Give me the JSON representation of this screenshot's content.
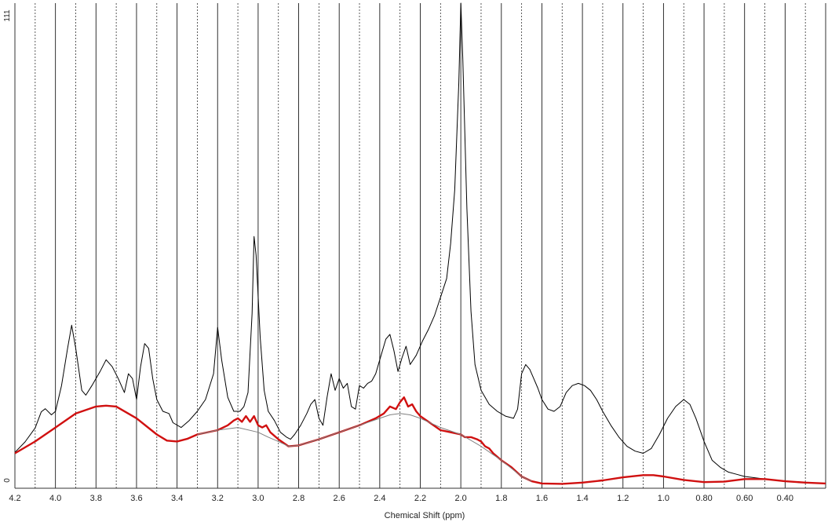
{
  "chart_data": {
    "type": "line",
    "title": "",
    "xlabel": "Chemical Shift (ppm)",
    "ylabel": "",
    "x_reversed": true,
    "xlim": [
      4.2,
      0.2
    ],
    "ylim": [
      0,
      111
    ],
    "y_tick_labels": [
      "111",
      "0"
    ],
    "y_ticks": [
      111,
      0
    ],
    "x_ticks": [
      4.2,
      4.0,
      3.8,
      3.6,
      3.4,
      3.2,
      3.0,
      2.8,
      2.6,
      2.4,
      2.2,
      2.0,
      1.8,
      1.6,
      1.4,
      1.2,
      1.0,
      0.8,
      0.6,
      0.4
    ],
    "x_tick_labels": [
      "4.2",
      "4.0",
      "3.8",
      "3.6",
      "3.4",
      "3.2",
      "3.0",
      "2.8",
      "2.6",
      "2.4",
      "2.2",
      "2.0",
      "1.8",
      "1.6",
      "1.4",
      "1.2",
      "1.0",
      "0.80",
      "0.60",
      "0.40"
    ],
    "grid": {
      "solid_lines": [
        4.0,
        3.8,
        3.6,
        3.4,
        3.2,
        3.0,
        2.8,
        2.6,
        2.4,
        2.2,
        2.0,
        1.8,
        1.6,
        1.4,
        1.2,
        1.0,
        0.8,
        0.6,
        0.4,
        0.2
      ],
      "dashed_lines": [
        4.1,
        3.9,
        3.7,
        3.5,
        3.3,
        3.1,
        2.9,
        2.7,
        2.5,
        2.3,
        2.1,
        1.9,
        1.7,
        1.5,
        1.3,
        1.1,
        0.9,
        0.7,
        0.5,
        0.3
      ]
    },
    "series": [
      {
        "color": "#000000",
        "points": [
          [
            4.2,
            8.2
          ],
          [
            4.15,
            10.6
          ],
          [
            4.1,
            13.8
          ],
          [
            4.07,
            17.5
          ],
          [
            4.05,
            18.2
          ],
          [
            4.02,
            16.8
          ],
          [
            4.0,
            17.6
          ],
          [
            3.97,
            23.5
          ],
          [
            3.94,
            32.0
          ],
          [
            3.92,
            37.3
          ],
          [
            3.9,
            32.0
          ],
          [
            3.87,
            22.4
          ],
          [
            3.85,
            21.3
          ],
          [
            3.82,
            23.5
          ],
          [
            3.78,
            26.7
          ],
          [
            3.75,
            29.4
          ],
          [
            3.72,
            27.8
          ],
          [
            3.69,
            25.1
          ],
          [
            3.66,
            21.9
          ],
          [
            3.64,
            26.2
          ],
          [
            3.62,
            25.1
          ],
          [
            3.6,
            20.3
          ],
          [
            3.58,
            27.8
          ],
          [
            3.56,
            33.1
          ],
          [
            3.54,
            32.0
          ],
          [
            3.52,
            25.1
          ],
          [
            3.5,
            20.3
          ],
          [
            3.47,
            17.6
          ],
          [
            3.44,
            17.1
          ],
          [
            3.42,
            15.0
          ],
          [
            3.38,
            13.9
          ],
          [
            3.34,
            15.5
          ],
          [
            3.3,
            17.6
          ],
          [
            3.26,
            20.3
          ],
          [
            3.22,
            26.2
          ],
          [
            3.2,
            36.8
          ],
          [
            3.18,
            29.4
          ],
          [
            3.15,
            20.8
          ],
          [
            3.12,
            17.6
          ],
          [
            3.09,
            17.6
          ],
          [
            3.07,
            18.7
          ],
          [
            3.05,
            21.9
          ],
          [
            3.03,
            40.0
          ],
          [
            3.02,
            57.6
          ],
          [
            3.01,
            53.3
          ],
          [
            2.99,
            34.6
          ],
          [
            2.97,
            22.4
          ],
          [
            2.95,
            17.6
          ],
          [
            2.92,
            15.5
          ],
          [
            2.89,
            12.8
          ],
          [
            2.86,
            11.7
          ],
          [
            2.84,
            11.2
          ],
          [
            2.82,
            12.3
          ],
          [
            2.79,
            14.4
          ],
          [
            2.76,
            17.1
          ],
          [
            2.74,
            19.2
          ],
          [
            2.72,
            20.3
          ],
          [
            2.7,
            16.0
          ],
          [
            2.68,
            14.4
          ],
          [
            2.66,
            20.8
          ],
          [
            2.64,
            26.2
          ],
          [
            2.62,
            22.4
          ],
          [
            2.6,
            25.1
          ],
          [
            2.58,
            22.9
          ],
          [
            2.56,
            24.0
          ],
          [
            2.54,
            18.7
          ],
          [
            2.52,
            18.1
          ],
          [
            2.5,
            23.5
          ],
          [
            2.48,
            22.9
          ],
          [
            2.46,
            24.0
          ],
          [
            2.44,
            24.5
          ],
          [
            2.42,
            26.2
          ],
          [
            2.4,
            29.4
          ],
          [
            2.37,
            34.1
          ],
          [
            2.35,
            35.2
          ],
          [
            2.33,
            31.5
          ],
          [
            2.31,
            26.7
          ],
          [
            2.29,
            29.9
          ],
          [
            2.27,
            32.5
          ],
          [
            2.25,
            28.3
          ],
          [
            2.22,
            30.4
          ],
          [
            2.19,
            33.6
          ],
          [
            2.16,
            36.3
          ],
          [
            2.13,
            39.5
          ],
          [
            2.1,
            43.7
          ],
          [
            2.07,
            48.0
          ],
          [
            2.05,
            56.0
          ],
          [
            2.03,
            68.3
          ],
          [
            2.01,
            92.8
          ],
          [
            2.0,
            111.0
          ],
          [
            1.99,
            98.1
          ],
          [
            1.97,
            64.0
          ],
          [
            1.95,
            40.5
          ],
          [
            1.93,
            28.3
          ],
          [
            1.9,
            22.4
          ],
          [
            1.86,
            19.2
          ],
          [
            1.82,
            17.6
          ],
          [
            1.78,
            16.5
          ],
          [
            1.74,
            16.0
          ],
          [
            1.72,
            18.1
          ],
          [
            1.7,
            26.2
          ],
          [
            1.68,
            28.3
          ],
          [
            1.66,
            27.2
          ],
          [
            1.64,
            25.1
          ],
          [
            1.62,
            22.9
          ],
          [
            1.6,
            20.3
          ],
          [
            1.57,
            18.1
          ],
          [
            1.54,
            17.6
          ],
          [
            1.51,
            18.7
          ],
          [
            1.48,
            21.9
          ],
          [
            1.45,
            23.5
          ],
          [
            1.42,
            24.0
          ],
          [
            1.39,
            23.5
          ],
          [
            1.36,
            22.4
          ],
          [
            1.33,
            20.3
          ],
          [
            1.3,
            17.6
          ],
          [
            1.26,
            14.4
          ],
          [
            1.22,
            11.7
          ],
          [
            1.18,
            9.6
          ],
          [
            1.14,
            8.5
          ],
          [
            1.1,
            8.0
          ],
          [
            1.06,
            9.1
          ],
          [
            1.02,
            12.3
          ],
          [
            0.98,
            16.0
          ],
          [
            0.94,
            18.7
          ],
          [
            0.9,
            20.3
          ],
          [
            0.87,
            19.2
          ],
          [
            0.84,
            16.0
          ],
          [
            0.8,
            10.7
          ],
          [
            0.76,
            6.4
          ],
          [
            0.72,
            4.8
          ],
          [
            0.68,
            3.7
          ],
          [
            0.64,
            3.2
          ],
          [
            0.6,
            2.7
          ],
          [
            0.5,
            2.1
          ],
          [
            0.4,
            1.6
          ],
          [
            0.3,
            1.3
          ],
          [
            0.2,
            1.1
          ]
        ]
      },
      {
        "color": "#d01010",
        "points": [
          [
            4.2,
            8.0
          ],
          [
            4.1,
            10.7
          ],
          [
            4.0,
            13.9
          ],
          [
            3.9,
            17.1
          ],
          [
            3.8,
            18.7
          ],
          [
            3.75,
            18.9
          ],
          [
            3.7,
            18.7
          ],
          [
            3.6,
            16.0
          ],
          [
            3.5,
            12.3
          ],
          [
            3.45,
            10.9
          ],
          [
            3.4,
            10.7
          ],
          [
            3.35,
            11.3
          ],
          [
            3.3,
            12.3
          ],
          [
            3.2,
            13.3
          ],
          [
            3.15,
            14.4
          ],
          [
            3.12,
            15.5
          ],
          [
            3.1,
            16.0
          ],
          [
            3.08,
            15.2
          ],
          [
            3.06,
            16.5
          ],
          [
            3.04,
            15.2
          ],
          [
            3.02,
            16.5
          ],
          [
            3.0,
            14.4
          ],
          [
            2.98,
            13.9
          ],
          [
            2.96,
            14.4
          ],
          [
            2.94,
            12.8
          ],
          [
            2.9,
            11.2
          ],
          [
            2.85,
            9.6
          ],
          [
            2.8,
            9.8
          ],
          [
            2.7,
            11.2
          ],
          [
            2.6,
            12.8
          ],
          [
            2.5,
            14.4
          ],
          [
            2.42,
            16.0
          ],
          [
            2.38,
            17.1
          ],
          [
            2.35,
            18.7
          ],
          [
            2.32,
            18.1
          ],
          [
            2.3,
            19.7
          ],
          [
            2.28,
            20.8
          ],
          [
            2.26,
            18.7
          ],
          [
            2.24,
            19.2
          ],
          [
            2.22,
            17.6
          ],
          [
            2.2,
            16.5
          ],
          [
            2.15,
            14.9
          ],
          [
            2.1,
            13.3
          ],
          [
            2.05,
            12.8
          ],
          [
            2.0,
            12.3
          ],
          [
            1.98,
            11.7
          ],
          [
            1.95,
            11.7
          ],
          [
            1.92,
            11.2
          ],
          [
            1.9,
            10.7
          ],
          [
            1.88,
            9.6
          ],
          [
            1.86,
            9.1
          ],
          [
            1.84,
            8.0
          ],
          [
            1.8,
            6.4
          ],
          [
            1.75,
            4.8
          ],
          [
            1.7,
            2.7
          ],
          [
            1.65,
            1.6
          ],
          [
            1.6,
            1.1
          ],
          [
            1.5,
            1.0
          ],
          [
            1.4,
            1.3
          ],
          [
            1.3,
            1.8
          ],
          [
            1.2,
            2.5
          ],
          [
            1.1,
            3.0
          ],
          [
            1.05,
            3.0
          ],
          [
            1.0,
            2.7
          ],
          [
            0.9,
            1.9
          ],
          [
            0.8,
            1.4
          ],
          [
            0.7,
            1.5
          ],
          [
            0.6,
            2.1
          ],
          [
            0.5,
            2.1
          ],
          [
            0.4,
            1.6
          ],
          [
            0.3,
            1.3
          ],
          [
            0.2,
            1.1
          ]
        ]
      },
      {
        "color": "#808080",
        "points": [
          [
            3.3,
            12.3
          ],
          [
            3.2,
            13.3
          ],
          [
            3.1,
            13.9
          ],
          [
            3.0,
            12.8
          ],
          [
            2.95,
            11.7
          ],
          [
            2.9,
            10.7
          ],
          [
            2.85,
            9.6
          ],
          [
            2.8,
            9.8
          ],
          [
            2.7,
            11.2
          ],
          [
            2.6,
            12.8
          ],
          [
            2.5,
            14.4
          ],
          [
            2.4,
            16.0
          ],
          [
            2.35,
            16.8
          ],
          [
            2.3,
            17.1
          ],
          [
            2.25,
            16.8
          ],
          [
            2.2,
            16.0
          ],
          [
            2.1,
            13.9
          ],
          [
            2.0,
            12.3
          ],
          [
            1.9,
            9.6
          ],
          [
            1.8,
            6.4
          ],
          [
            1.7,
            2.7
          ],
          [
            1.65,
            1.6
          ]
        ]
      }
    ]
  }
}
